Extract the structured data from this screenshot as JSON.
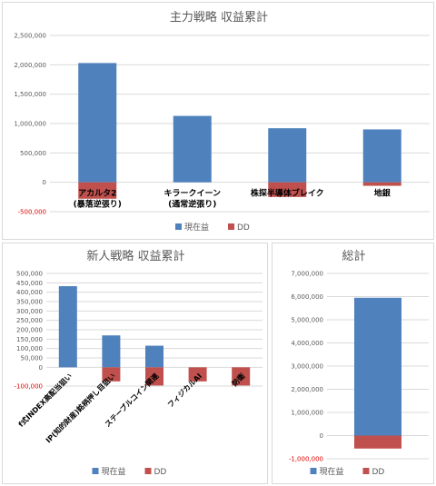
{
  "chart_data": [
    {
      "type": "bar",
      "title": "主力戦略 収益累計",
      "categories": [
        "アカルタ2\n(暴落逆張り)",
        "キラークイーン\n(通常逆張り)",
        "株探半導体ブレイク",
        "地銀"
      ],
      "series": [
        {
          "name": "現在益",
          "color": "#4f81bd",
          "values": [
            2030000,
            1130000,
            920000,
            900000
          ]
        },
        {
          "name": "DD",
          "color": "#c0504d",
          "values": [
            -280000,
            0,
            -250000,
            -60000
          ]
        }
      ],
      "ylim": [
        -500000,
        2500000
      ],
      "yticks": [
        -500000,
        0,
        500000,
        1000000,
        1500000,
        2000000,
        2500000
      ],
      "ytick_labels": [
        "-500,000",
        "0",
        "500,000",
        "1,000,000",
        "1,500,000",
        "2,000,000",
        "2,500,000"
      ],
      "grid": true,
      "legend": "bottom"
    },
    {
      "type": "bar",
      "title": "新人戦略 収益累計",
      "categories": [
        "f式INDEX高配当狙い",
        "IP(知的財産)銘柄押し目狙い",
        "ステーブルコイン関連",
        "フィジカルAI",
        "防衛"
      ],
      "series": [
        {
          "name": "現在益",
          "color": "#4f81bd",
          "values": [
            432000,
            170000,
            115000,
            0,
            0
          ]
        },
        {
          "name": "DD",
          "color": "#c0504d",
          "values": [
            0,
            -75000,
            -97000,
            -75000,
            -97000
          ]
        }
      ],
      "ylim": [
        -100000,
        500000
      ],
      "yticks": [
        -100000,
        0,
        50000,
        100000,
        150000,
        200000,
        250000,
        300000,
        350000,
        400000,
        450000,
        500000
      ],
      "ytick_labels": [
        "-100,000",
        "0",
        "50,000",
        "100,000",
        "150,000",
        "200,000",
        "250,000",
        "300,000",
        "350,000",
        "400,000",
        "450,000",
        "500,000"
      ],
      "grid": true,
      "legend": "bottom"
    },
    {
      "type": "bar",
      "title": "総計",
      "categories": [
        ""
      ],
      "series": [
        {
          "name": "現在益",
          "color": "#4f81bd",
          "values": [
            5950000
          ]
        },
        {
          "name": "DD",
          "color": "#c0504d",
          "values": [
            -560000
          ]
        }
      ],
      "ylim": [
        -1000000,
        7000000
      ],
      "yticks": [
        -1000000,
        0,
        1000000,
        2000000,
        3000000,
        4000000,
        5000000,
        6000000,
        7000000
      ],
      "ytick_labels": [
        "-1,000,000",
        "0",
        "1,000,000",
        "2,000,000",
        "3,000,000",
        "4,000,000",
        "5,000,000",
        "6,000,000",
        "7,000,000"
      ],
      "grid": true,
      "legend": "bottom"
    }
  ]
}
